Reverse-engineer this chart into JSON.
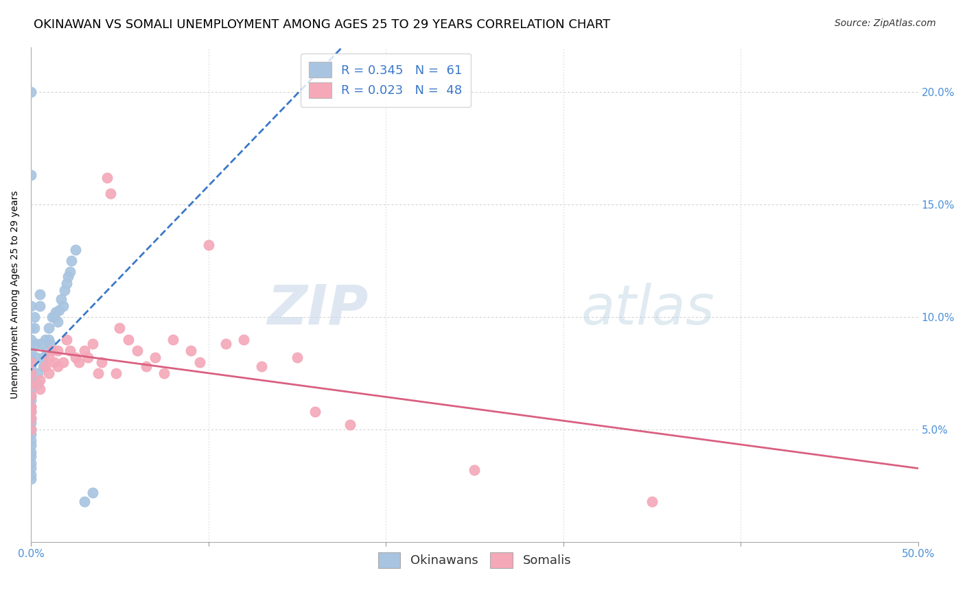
{
  "title": "OKINAWAN VS SOMALI UNEMPLOYMENT AMONG AGES 25 TO 29 YEARS CORRELATION CHART",
  "source": "Source: ZipAtlas.com",
  "ylabel": "Unemployment Among Ages 25 to 29 years",
  "xlim": [
    0.0,
    0.5
  ],
  "ylim": [
    0.0,
    0.22
  ],
  "legend_r1": "R = 0.345",
  "legend_n1": "N =  61",
  "legend_r2": "R = 0.023",
  "legend_n2": "N =  48",
  "okinawan_color": "#a8c4e0",
  "somali_color": "#f4a8b8",
  "okinawan_line_color": "#3a78c9",
  "somali_line_color": "#d96080",
  "background_color": "#ffffff",
  "watermark_zip": "ZIP",
  "watermark_atlas": "atlas",
  "okinawan_x": [
    0.0,
    0.0,
    0.0,
    0.0,
    0.0,
    0.0,
    0.0,
    0.0,
    0.0,
    0.0,
    0.0,
    0.0,
    0.0,
    0.0,
    0.0,
    0.0,
    0.0,
    0.0,
    0.0,
    0.0,
    0.0,
    0.0,
    0.0,
    0.0,
    0.0,
    0.0,
    0.0,
    0.0,
    0.0,
    0.0,
    0.002,
    0.002,
    0.003,
    0.003,
    0.004,
    0.004,
    0.005,
    0.005,
    0.006,
    0.007,
    0.007,
    0.008,
    0.009,
    0.01,
    0.01,
    0.011,
    0.012,
    0.013,
    0.014,
    0.015,
    0.016,
    0.017,
    0.018,
    0.019,
    0.02,
    0.021,
    0.022,
    0.023,
    0.025,
    0.03,
    0.035
  ],
  "okinawan_y": [
    0.2,
    0.163,
    0.105,
    0.095,
    0.09,
    0.088,
    0.085,
    0.082,
    0.08,
    0.078,
    0.075,
    0.073,
    0.07,
    0.068,
    0.065,
    0.063,
    0.06,
    0.058,
    0.055,
    0.053,
    0.05,
    0.048,
    0.045,
    0.043,
    0.04,
    0.038,
    0.035,
    0.033,
    0.03,
    0.028,
    0.1,
    0.095,
    0.088,
    0.082,
    0.075,
    0.07,
    0.11,
    0.105,
    0.088,
    0.082,
    0.078,
    0.09,
    0.085,
    0.095,
    0.09,
    0.088,
    0.1,
    0.1,
    0.102,
    0.098,
    0.103,
    0.108,
    0.105,
    0.112,
    0.115,
    0.118,
    0.12,
    0.125,
    0.13,
    0.018,
    0.022
  ],
  "somali_x": [
    0.0,
    0.0,
    0.0,
    0.0,
    0.0,
    0.0,
    0.0,
    0.0,
    0.005,
    0.005,
    0.008,
    0.01,
    0.01,
    0.012,
    0.013,
    0.015,
    0.015,
    0.018,
    0.02,
    0.022,
    0.025,
    0.027,
    0.03,
    0.032,
    0.035,
    0.038,
    0.04,
    0.043,
    0.045,
    0.048,
    0.05,
    0.055,
    0.06,
    0.065,
    0.07,
    0.075,
    0.08,
    0.09,
    0.095,
    0.1,
    0.11,
    0.12,
    0.13,
    0.15,
    0.16,
    0.18,
    0.25,
    0.35
  ],
  "somali_y": [
    0.08,
    0.075,
    0.07,
    0.065,
    0.06,
    0.058,
    0.055,
    0.05,
    0.072,
    0.068,
    0.078,
    0.082,
    0.075,
    0.085,
    0.08,
    0.085,
    0.078,
    0.08,
    0.09,
    0.085,
    0.082,
    0.08,
    0.085,
    0.082,
    0.088,
    0.075,
    0.08,
    0.162,
    0.155,
    0.075,
    0.095,
    0.09,
    0.085,
    0.078,
    0.082,
    0.075,
    0.09,
    0.085,
    0.08,
    0.132,
    0.088,
    0.09,
    0.078,
    0.082,
    0.058,
    0.052,
    0.032,
    0.018
  ],
  "grid_color": "#cccccc",
  "title_fontsize": 13,
  "axis_label_fontsize": 10,
  "tick_fontsize": 11,
  "legend_fontsize": 13
}
